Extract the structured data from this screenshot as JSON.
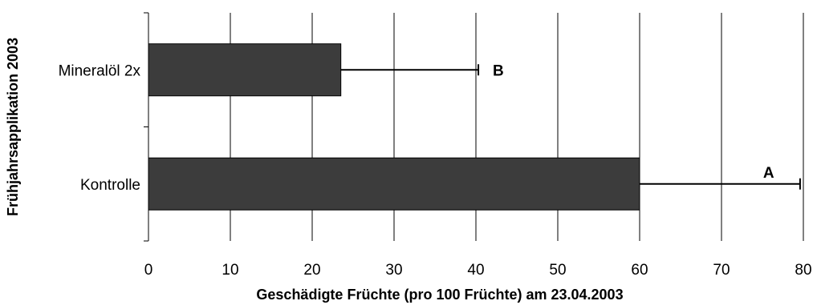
{
  "chart_data": {
    "type": "bar",
    "orientation": "horizontal",
    "categories": [
      "Mineralöl 2x",
      "Kontrolle"
    ],
    "values": [
      23.5,
      60
    ],
    "error_upper": [
      40.3,
      79.6
    ],
    "significance_letters": [
      "B",
      "A"
    ],
    "xlabel": "Geschädigte Früchte (pro 100 Früchte) am 23.04.2003",
    "ylabel": "Frühjahrsapplikation 2003",
    "xlim": [
      0,
      80
    ],
    "xticks": [
      "0",
      "10",
      "20",
      "30",
      "40",
      "50",
      "60",
      "70",
      "80"
    ],
    "grid": "vertical",
    "legend": "none",
    "colors": {
      "bar": "#3c3c3c",
      "grid": "#000000"
    }
  }
}
